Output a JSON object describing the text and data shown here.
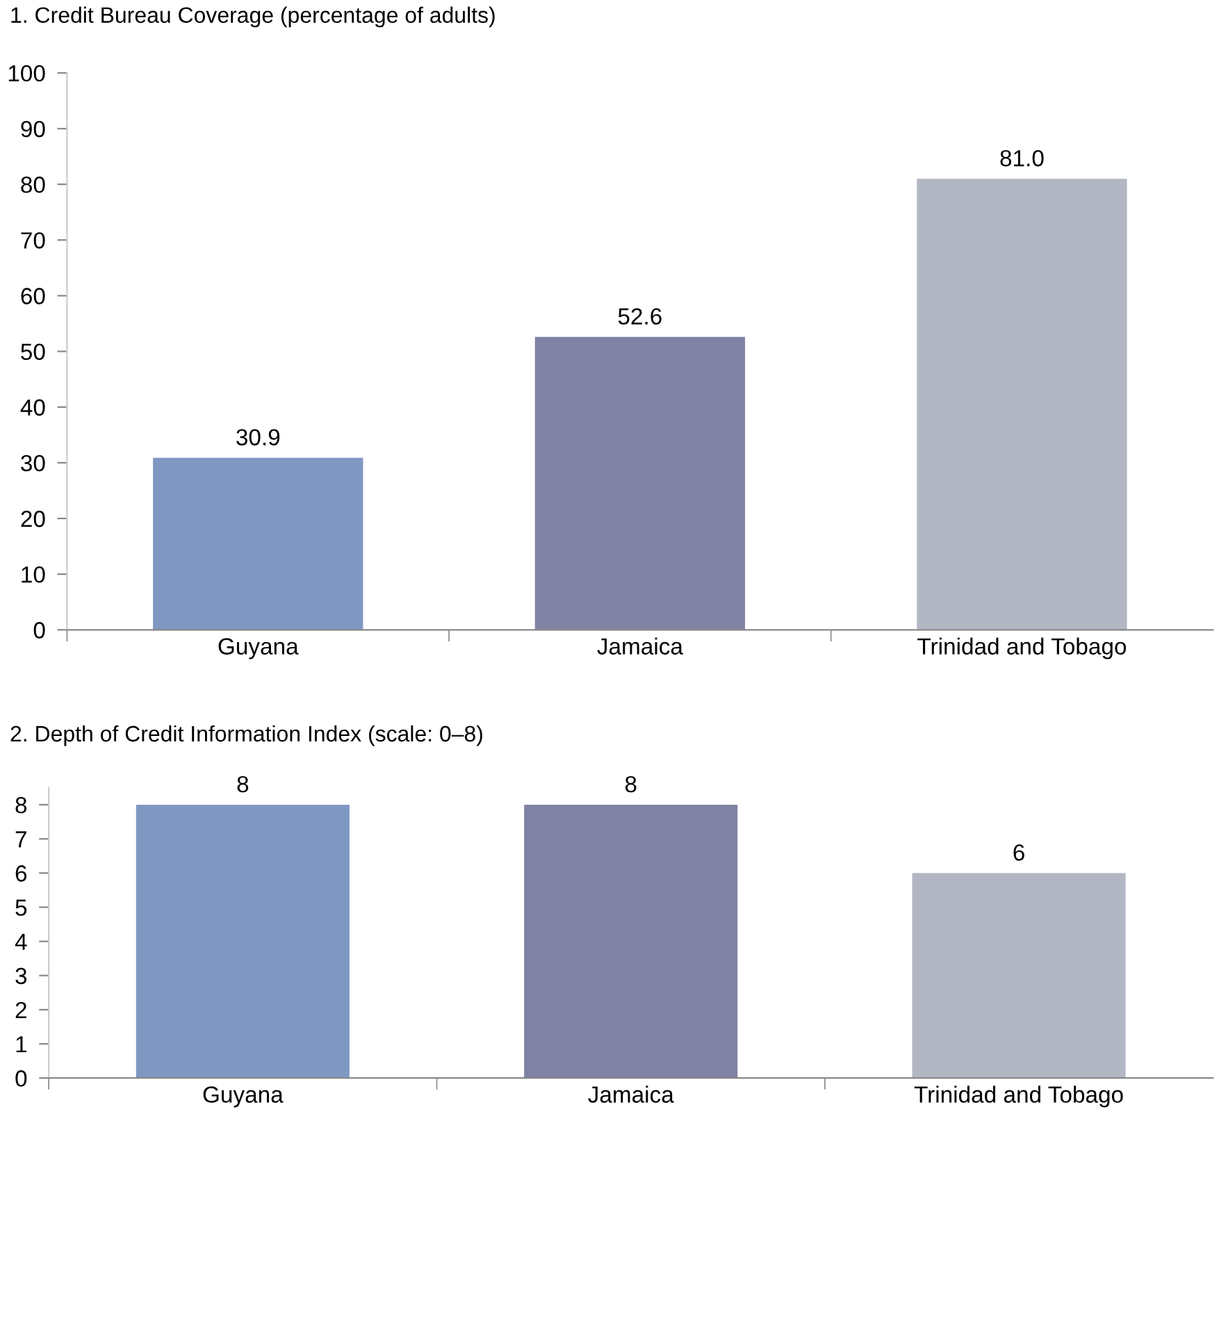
{
  "chart_data": [
    {
      "type": "bar",
      "title": "1. Credit Bureau Coverage (percentage of adults)",
      "categories": [
        "Guyana",
        "Jamaica",
        "Trinidad and Tobago"
      ],
      "values": [
        30.9,
        52.6,
        81.0
      ],
      "value_labels": [
        "30.9",
        "52.6",
        "81.0"
      ],
      "colors": [
        "#7f98c2",
        "#7f82a3",
        "#b3b7c4"
      ],
      "ylim": [
        0,
        100
      ],
      "yticks": [
        0,
        10,
        20,
        30,
        40,
        50,
        60,
        70,
        80,
        90,
        100
      ],
      "grid": false,
      "legend": false
    },
    {
      "type": "bar",
      "title": "2. Depth of Credit Information Index (scale: 0–8)",
      "categories": [
        "Guyana",
        "Jamaica",
        "Trinidad and Tobago"
      ],
      "values": [
        8,
        8,
        6
      ],
      "data_labels": true,
      "colors": [
        "#7f98c2",
        "#7f82a3",
        "#b3b7c4"
      ],
      "ylim": [
        0,
        8.5
      ],
      "yticks": [
        0,
        1,
        2,
        3,
        4,
        5,
        6,
        7,
        8
      ],
      "grid": false,
      "legend": false
    }
  ]
}
